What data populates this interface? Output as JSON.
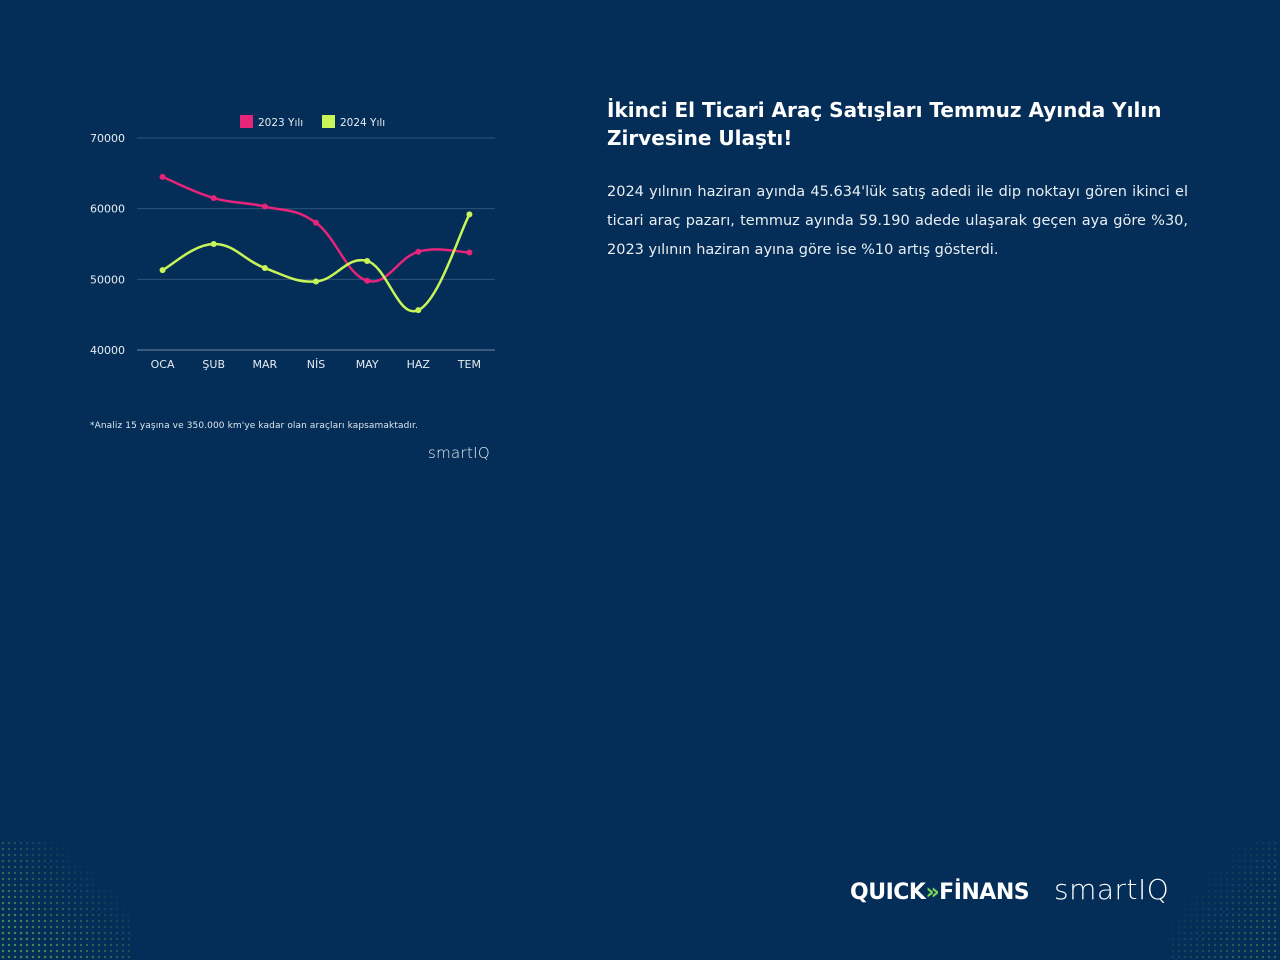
{
  "headline": "İkinci El Ticari Araç Satışları Temmuz Ayında Yılın Zirvesine Ulaştı!",
  "body": "2024 yılının haziran ayında 45.634'lük satış adedi ile dip noktayı gören ikinci el ticari araç pazarı, temmuz ayında 59.190 adede ulaşarak geçen aya göre %30, 2023 yılının haziran ayına göre ise %10 artış gösterdi.",
  "footnote": "*Analiz 15 yaşına ve 350.000 km'ye kadar olan araçları kapsamaktadır.",
  "chart_logo": "smartIQ",
  "brands": {
    "quick": "QUICK",
    "quick_arrow": "»",
    "finans": "FİNANS",
    "smartiq": "smartIQ"
  },
  "colors": {
    "background": "#042e57",
    "series_2023": "#e5247a",
    "series_2024": "#c8f558",
    "accent_green": "#7ed957"
  },
  "chart_data": {
    "type": "line",
    "categories": [
      "OCA",
      "ŞUB",
      "MAR",
      "NİS",
      "MAY",
      "HAZ",
      "TEM"
    ],
    "series": [
      {
        "name": "2023 Yılı",
        "color": "#e5247a",
        "values": [
          64500,
          61500,
          60300,
          58000,
          49800,
          53900,
          53800
        ]
      },
      {
        "name": "2024 Yılı",
        "color": "#c8f558",
        "values": [
          51300,
          55000,
          51600,
          49700,
          52600,
          45634,
          59190
        ]
      }
    ],
    "ylim": [
      40000,
      70000
    ],
    "yticks": [
      40000,
      50000,
      60000,
      70000
    ],
    "legend": "top-center",
    "grid": true,
    "title": "",
    "xlabel": "",
    "ylabel": ""
  }
}
